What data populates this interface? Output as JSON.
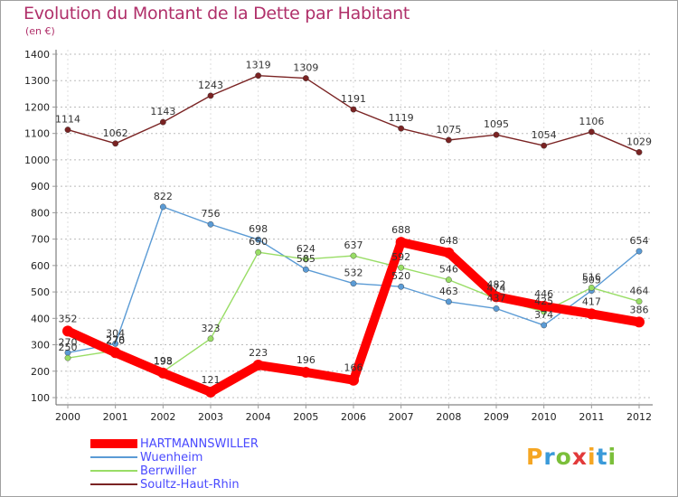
{
  "title": "Evolution du Montant de la Dette par Habitant",
  "unit": "(en €)",
  "logo": "Proxiti",
  "logo_colors": [
    "#f5a623",
    "#3a9ad9",
    "#7bbf3a",
    "#e23a3a",
    "#f5a623",
    "#3a9ad9",
    "#7bbf3a"
  ],
  "chart_data": {
    "type": "line",
    "x": [
      2000,
      2001,
      2002,
      2003,
      2004,
      2005,
      2006,
      2007,
      2008,
      2009,
      2010,
      2011,
      2012
    ],
    "ylim": [
      100,
      1400
    ],
    "yticks": [
      100,
      200,
      300,
      400,
      500,
      600,
      700,
      800,
      900,
      1000,
      1100,
      1200,
      1300,
      1400
    ],
    "grid": "y-dashed",
    "legend": "bottom-left",
    "series": [
      {
        "name": "HARTMANNSWILLER",
        "color": "#ff0000",
        "values": [
          352,
          270,
          193,
          121,
          223,
          196,
          166,
          688,
          648,
          482,
          446,
          417,
          386
        ]
      },
      {
        "name": "Wuenheim",
        "color": "#5b9bd5",
        "values": [
          270,
          304,
          822,
          756,
          698,
          585,
          532,
          520,
          463,
          437,
          374,
          505,
          654
        ]
      },
      {
        "name": "Berrwiller",
        "color": "#99dd66",
        "values": [
          250,
          278,
          198,
          323,
          650,
          624,
          637,
          592,
          546,
          474,
          425,
          516,
          464
        ]
      },
      {
        "name": "Soultz-Haut-Rhin",
        "color": "#7a2323",
        "values": [
          1114,
          1062,
          1143,
          1243,
          1319,
          1309,
          1191,
          1119,
          1075,
          1095,
          1054,
          1106,
          1029
        ]
      }
    ]
  }
}
